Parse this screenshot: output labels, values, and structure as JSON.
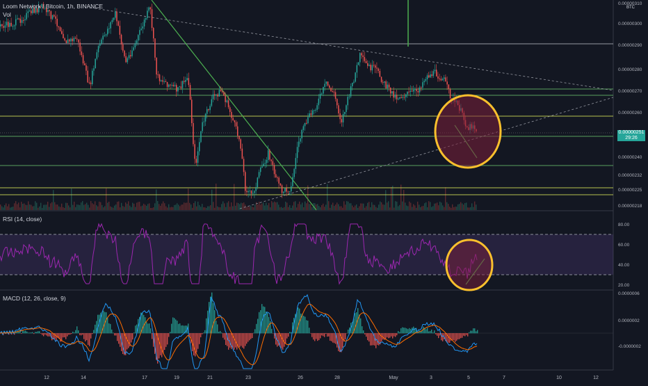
{
  "header": {
    "symbol_title": "Loom Network / Bitcoin, 1h, BINANCE",
    "volume_label": "Vol"
  },
  "price_pane": {
    "y_ticks": [
      "0.00000310",
      "0.00000300",
      "0.00000290",
      "0.00000280",
      "0.00000270",
      "0.00000260",
      "0.00000251",
      "0.00000240",
      "0.00000232",
      "0.00000225",
      "0.00000218"
    ],
    "current_price": "0.00000251",
    "countdown": "29:26",
    "currency_badge": "BTC"
  },
  "rsi_pane": {
    "label": "RSI (14, close)",
    "y_ticks": [
      "80.00",
      "60.00",
      "40.00",
      "20.00"
    ]
  },
  "macd_pane": {
    "label": "MACD (12, 26, close, 9)",
    "y_ticks": [
      "0.0000006",
      "0.0000002",
      "-0.0000002"
    ]
  },
  "x_axis": {
    "ticks": [
      "12",
      "14",
      "17",
      "19",
      "21",
      "23",
      "26",
      "28",
      "May",
      "3",
      "5",
      "7",
      "10",
      "12"
    ]
  },
  "colors": {
    "background": "#131722",
    "up_candle": "#26a69a",
    "down_candle": "#ef5350",
    "trendline_green": "#4caf50",
    "horizontal_yellow": "#d4e157",
    "horizontal_green": "#66bb6a",
    "circle_outline": "#fbc02d",
    "rsi_line": "#9c27b0",
    "macd_line": "#2196f3",
    "signal_line": "#ff6d00"
  },
  "chart_data": {
    "type": "candlestick",
    "x_ticks": [
      "12",
      "14",
      "17",
      "19",
      "21",
      "23",
      "26",
      "28",
      "May",
      "3",
      "5",
      "7",
      "10",
      "12"
    ],
    "price_series_keypoints": [
      {
        "x": "12",
        "close": 2.92e-06
      },
      {
        "x": "14",
        "close": 2.7e-06
      },
      {
        "x": "17",
        "close": 3e-06
      },
      {
        "x": "19",
        "close": 2.65e-06
      },
      {
        "x": "21",
        "close": 2.7e-06
      },
      {
        "x": "23",
        "close": 2.26e-06
      },
      {
        "x": "26",
        "close": 2.58e-06
      },
      {
        "x": "28",
        "close": 2.85e-06
      },
      {
        "x": "May",
        "close": 2.72e-06
      },
      {
        "x": "3",
        "close": 2.75e-06
      },
      {
        "x": "5",
        "close": 2.51e-06
      }
    ],
    "horizontal_levels": [
      2.9e-06,
      2.71e-06,
      2.68e-06,
      2.58e-06,
      2.5e-06,
      2.37e-06,
      2.26e-06,
      2.22e-06
    ],
    "rsi_overbought": 70,
    "rsi_oversold": 30,
    "rsi_range": [
      15,
      85
    ],
    "macd_range": [
      -4e-07,
      6e-07
    ]
  }
}
